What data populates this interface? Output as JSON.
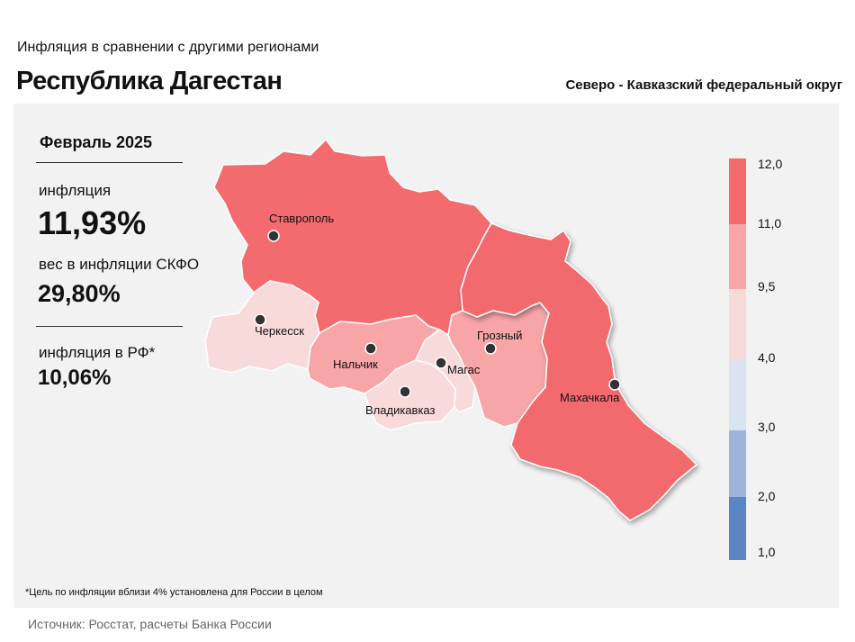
{
  "header": {
    "subtitle": "Инфляция в сравнении с другими регионами",
    "title": "Республика Дагестан",
    "district": "Северо - Кавказский федеральный округ"
  },
  "stats": {
    "period": "Февраль 2025",
    "inflation_label": "инфляция",
    "inflation_value": "11,93%",
    "weight_label": "вес в инфляции СКФО",
    "weight_value": "29,80%",
    "rf_label": "инфляция в РФ*",
    "rf_value": "10,06%"
  },
  "cities": {
    "stavropol": "Ставрополь",
    "cherkessk": "Черкесск",
    "nalchik": "Нальчик",
    "magas": "Магас",
    "vladikavkaz": "Владикавказ",
    "grozny": "Грозный",
    "makhachkala": "Махачкала"
  },
  "legend": {
    "ticks": [
      "12,0",
      "11,0",
      "9,5",
      "4,0",
      "3,0",
      "2,0",
      "1,0"
    ],
    "colors": [
      "#f36b6e",
      "#f7a5a7",
      "#f9dadb",
      "#dbe3f1",
      "#9db5da",
      "#5b86c4"
    ]
  },
  "regions": {
    "stavropol": {
      "color": "#f36b6e"
    },
    "dagestan": {
      "color": "#f36b6e"
    },
    "chechnya": {
      "color": "#f7a5a7"
    },
    "kbr": {
      "color": "#f7a5a7"
    },
    "kchr": {
      "color": "#f9dadb"
    },
    "ossetia": {
      "color": "#f9dadb"
    },
    "ingushetia": {
      "color": "#f9dadb"
    }
  },
  "footnote": "*Цель по инфляции вблизи 4% установлена для России в целом",
  "source": "Источник: Росстат, расчеты Банка России"
}
